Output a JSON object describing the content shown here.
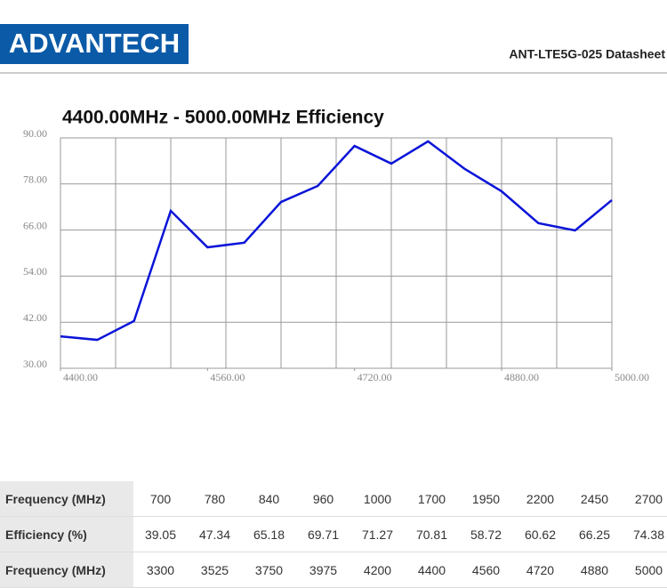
{
  "header": {
    "logo": "ADVANTECH",
    "doc_title": "ANT-LTE5G-025  Datasheet"
  },
  "chart_data": {
    "type": "line",
    "title": "4400.00MHz - 5000.00MHz Efficiency",
    "x": [
      4400,
      4440,
      4480,
      4520,
      4560,
      4600,
      4640,
      4680,
      4720,
      4760,
      4800,
      4840,
      4880,
      4920,
      4960,
      5000
    ],
    "series": [
      {
        "color": "#0a14d8",
        "values": [
          38.3,
          37.4,
          42.3,
          71.0,
          61.5,
          62.7,
          73.3,
          77.5,
          87.9,
          83.3,
          89.1,
          81.9,
          76.1,
          67.8,
          65.9,
          73.8
        ]
      }
    ],
    "xlim": [
      4400,
      5000
    ],
    "xticks": [
      {
        "value": 4400,
        "label": "4400.00"
      },
      {
        "value": 4560,
        "label": "4560.00"
      },
      {
        "value": 4720,
        "label": "4720.00"
      },
      {
        "value": 4880,
        "label": "4880.00"
      },
      {
        "value": 5000,
        "label": "5000.00"
      }
    ],
    "xgrid": [
      4400,
      4460,
      4520,
      4580,
      4640,
      4700,
      4760,
      4820,
      4880,
      4940,
      5000
    ],
    "ylim": [
      30,
      90
    ],
    "yticks": [
      {
        "value": 30,
        "label": "30.00"
      },
      {
        "value": 42,
        "label": "42.00"
      },
      {
        "value": 54,
        "label": "54.00"
      },
      {
        "value": 66,
        "label": "66.00"
      },
      {
        "value": 78,
        "label": "78.00"
      },
      {
        "value": 90,
        "label": "90.00"
      }
    ],
    "grid": true
  },
  "table": {
    "rows": [
      [
        "Frequency (MHz)",
        "700",
        "780",
        "840",
        "960",
        "1000",
        "1700",
        "1950",
        "2200",
        "2450",
        "2700"
      ],
      [
        "Efficiency (%)",
        "39.05",
        "47.34",
        "65.18",
        "69.71",
        "71.27",
        "70.81",
        "58.72",
        "60.62",
        "66.25",
        "74.38"
      ],
      [
        "Frequency (MHz)",
        "3300",
        "3525",
        "3750",
        "3975",
        "4200",
        "4400",
        "4560",
        "4720",
        "4880",
        "5000"
      ]
    ]
  }
}
